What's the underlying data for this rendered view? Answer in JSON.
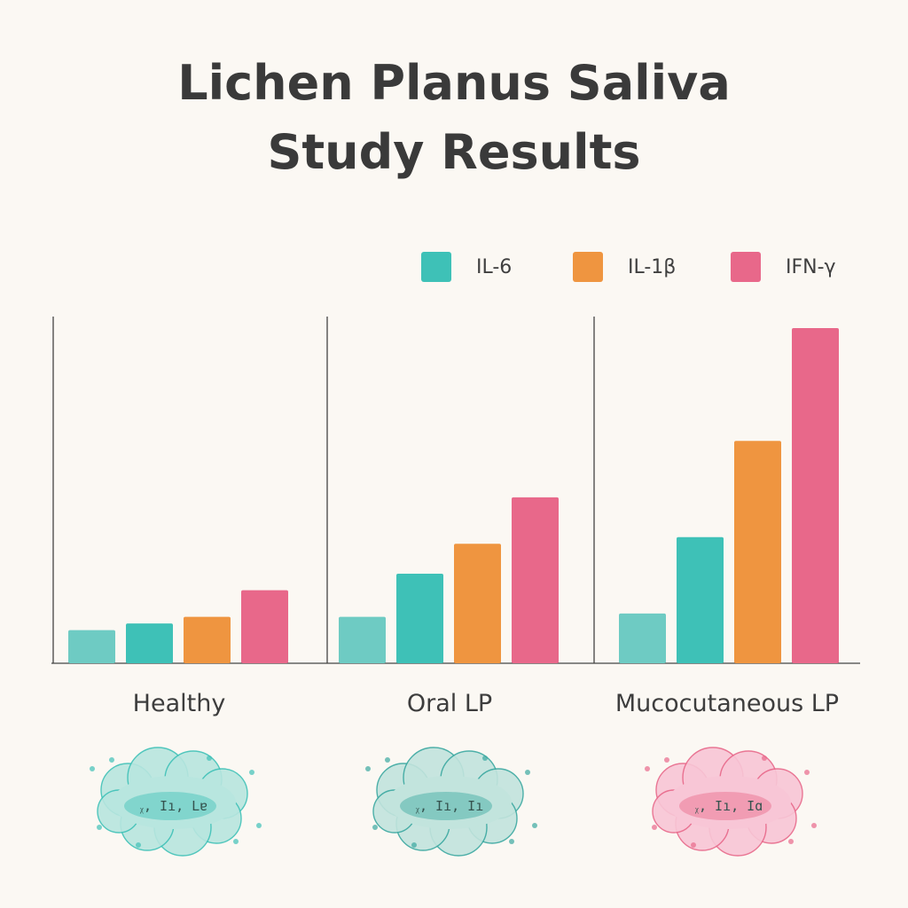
{
  "chart_data": {
    "type": "bar",
    "title_lines": [
      "Lichen Planus Saliva",
      "Study Results"
    ],
    "xlabel": "",
    "ylabel": "",
    "ylim": [
      0,
      100
    ],
    "grid": false,
    "legend_position": "top-right",
    "categories": [
      "Healthy",
      "Oral LP",
      "Mucocutaneous LP"
    ],
    "series": [
      {
        "name": "IL-6",
        "color": "#3ec1b7",
        "values": [
          12,
          27,
          38
        ]
      },
      {
        "name": "IL-1β",
        "color": "#ef9540",
        "values": [
          14,
          36,
          67
        ]
      },
      {
        "name": "IFN-γ",
        "color": "#e8688a",
        "values": [
          22,
          50,
          101
        ]
      }
    ],
    "baseline_bar": {
      "color": "#6ecbc3",
      "values": [
        10,
        14,
        15
      ]
    }
  },
  "illustrations": [
    {
      "icon": "teal-saliva-cloud-icon",
      "color": "#3ec1b7",
      "fill": "#b8e6df",
      "label": "ᵪ, Iı, Lɐ"
    },
    {
      "icon": "teal-saliva-cloud-icon",
      "color": "#3aa8a0",
      "fill": "#c2e4dd",
      "label": "ᵪ, Iı, Iı"
    },
    {
      "icon": "pink-saliva-cloud-icon",
      "color": "#e8688a",
      "fill": "#f8c6d6",
      "label": "ᵪ, Iı, Iɑ"
    }
  ]
}
